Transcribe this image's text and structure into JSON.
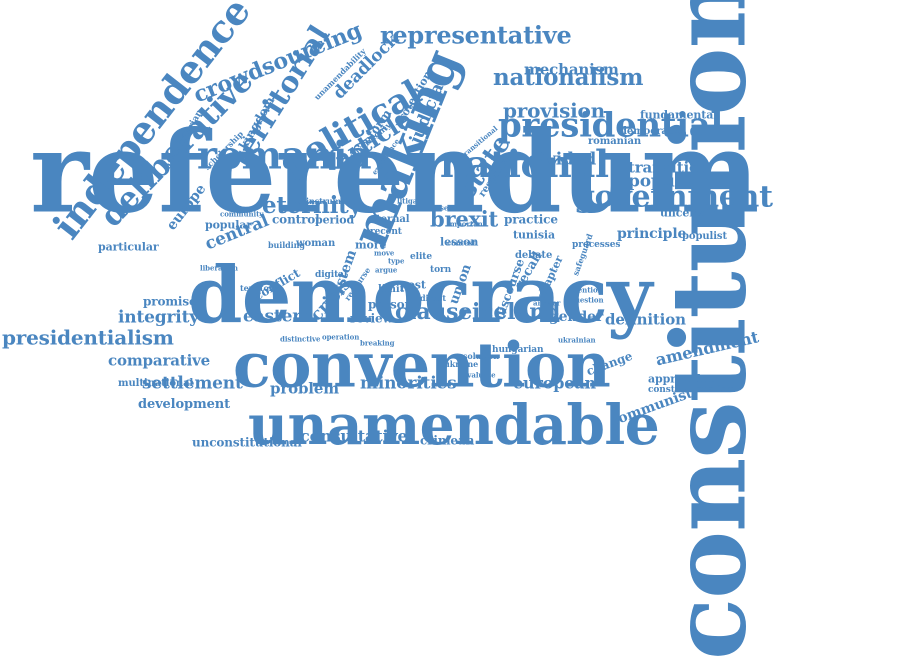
{
  "colors": {
    "word": "#4a86c0",
    "background": "#ffffff"
  },
  "words": [
    {
      "id": "referendum",
      "text": "referendum"
    },
    {
      "id": "democracy",
      "text": "democracy"
    },
    {
      "id": "constitution",
      "text": "constitution"
    },
    {
      "id": "convention",
      "text": "convention"
    },
    {
      "id": "unamendable",
      "text": "unamendable"
    },
    {
      "id": "romania",
      "text": "romania"
    },
    {
      "id": "national",
      "text": "national"
    },
    {
      "id": "presidential",
      "text": "presidential"
    },
    {
      "id": "government",
      "text": "government"
    },
    {
      "id": "making",
      "text": "making"
    },
    {
      "id": "independence",
      "text": "independence"
    },
    {
      "id": "deliberative",
      "text": "deliberative"
    },
    {
      "id": "political",
      "text": "political"
    },
    {
      "id": "representative",
      "text": "representative"
    },
    {
      "id": "territorial",
      "text": "territorial"
    },
    {
      "id": "crowdsourcing",
      "text": "crowdsourcing"
    },
    {
      "id": "eternity",
      "text": "eternity"
    },
    {
      "id": "article",
      "text": "article"
    },
    {
      "id": "state",
      "text": "state"
    },
    {
      "id": "presidentialism",
      "text": "presidentialism"
    },
    {
      "id": "nationalism",
      "text": "nationalism"
    },
    {
      "id": "provision",
      "text": "provision"
    },
    {
      "id": "brexit",
      "text": "brexit"
    },
    {
      "id": "iceland",
      "text": "iceland"
    },
    {
      "id": "clause",
      "text": "clause"
    },
    {
      "id": "european",
      "text": "european"
    },
    {
      "id": "minorities",
      "text": "minorities"
    },
    {
      "id": "settlement",
      "text": "settlement"
    },
    {
      "id": "consultative",
      "text": "consultative"
    },
    {
      "id": "integrity",
      "text": "integrity"
    },
    {
      "id": "comparative",
      "text": "comparative"
    },
    {
      "id": "amendment",
      "text": "amendment"
    },
    {
      "id": "populism",
      "text": "populism"
    },
    {
      "id": "deadlock",
      "text": "deadlock"
    },
    {
      "id": "judicial",
      "text": "judicial"
    },
    {
      "id": "mechanism",
      "text": "mechanism"
    },
    {
      "id": "divided",
      "text": "divided"
    },
    {
      "id": "transition",
      "text": "transition"
    },
    {
      "id": "principle",
      "text": "principle"
    },
    {
      "id": "central",
      "text": "central"
    },
    {
      "id": "eastern",
      "text": "eastern"
    },
    {
      "id": "gender",
      "text": "gender"
    },
    {
      "id": "definition",
      "text": "definition"
    },
    {
      "id": "problem",
      "text": "problem"
    },
    {
      "id": "development",
      "text": "development"
    },
    {
      "id": "unconstitutional",
      "text": "unconstitutional"
    },
    {
      "id": "communist",
      "text": "communist"
    },
    {
      "id": "crimean",
      "text": "crimean"
    },
    {
      "id": "crisis",
      "text": "crisis"
    },
    {
      "id": "review",
      "text": "review"
    },
    {
      "id": "europe",
      "text": "europe"
    },
    {
      "id": "kingdom",
      "text": "kingdom"
    },
    {
      "id": "reform",
      "text": "reform"
    },
    {
      "id": "protection",
      "text": "protection"
    },
    {
      "id": "fundamental",
      "text": "fundamental"
    },
    {
      "id": "democratic",
      "text": "democratic"
    },
    {
      "id": "romanian",
      "text": "romanian"
    },
    {
      "id": "uncertain",
      "text": "uncertain"
    },
    {
      "id": "populist",
      "text": "populist"
    },
    {
      "id": "lesson",
      "text": "lesson"
    },
    {
      "id": "practice",
      "text": "practice"
    },
    {
      "id": "tunisia",
      "text": "tunisia"
    },
    {
      "id": "debate",
      "text": "debate"
    },
    {
      "id": "processes",
      "text": "processes"
    },
    {
      "id": "particular",
      "text": "particular"
    },
    {
      "id": "popular",
      "text": "popular"
    },
    {
      "id": "control",
      "text": "control"
    },
    {
      "id": "period",
      "text": "period"
    },
    {
      "id": "eternal",
      "text": "eternal"
    },
    {
      "id": "recent",
      "text": "recent"
    },
    {
      "id": "more",
      "text": "more"
    },
    {
      "id": "building",
      "text": "building"
    },
    {
      "id": "woman",
      "text": "woman"
    },
    {
      "id": "promise",
      "text": "promise"
    },
    {
      "id": "conflict",
      "text": "conflict"
    },
    {
      "id": "territory",
      "text": "territory"
    },
    {
      "id": "multinational",
      "text": "multinational"
    },
    {
      "id": "approaches",
      "text": "approaches"
    },
    {
      "id": "constitutionalism",
      "text": "constitutionalism"
    },
    {
      "id": "change",
      "text": "change"
    },
    {
      "id": "system",
      "text": "system"
    },
    {
      "id": "limit",
      "text": "limit"
    },
    {
      "id": "post",
      "text": "post"
    },
    {
      "id": "person",
      "text": "person"
    },
    {
      "id": "union",
      "text": "union"
    },
    {
      "id": "discourse",
      "text": "discourse"
    },
    {
      "id": "recall",
      "text": "recall"
    },
    {
      "id": "chapter",
      "text": "chapter"
    },
    {
      "id": "authoritarian",
      "text": "authoritarian"
    },
    {
      "id": "scholarship",
      "text": "scholarship"
    },
    {
      "id": "unamendability",
      "text": "unamendability"
    },
    {
      "id": "sovereignty",
      "text": "sovereignty"
    },
    {
      "id": "instrument",
      "text": "instrument"
    },
    {
      "id": "response",
      "text": "response"
    },
    {
      "id": "litigation",
      "text": "litigation"
    },
    {
      "id": "elite",
      "text": "elite"
    },
    {
      "id": "torn",
      "text": "torn"
    },
    {
      "id": "direct",
      "text": "direct"
    },
    {
      "id": "hungarian",
      "text": "hungarian"
    },
    {
      "id": "ukraine",
      "text": "ukraine"
    },
    {
      "id": "solution",
      "text": "solution"
    },
    {
      "id": "evaluate",
      "text": "evaluate"
    },
    {
      "id": "breaking",
      "text": "breaking"
    },
    {
      "id": "operation",
      "text": "operation"
    },
    {
      "id": "distinctive",
      "text": "distinctive"
    },
    {
      "id": "community",
      "text": "community"
    },
    {
      "id": "type",
      "text": "type"
    },
    {
      "id": "digital",
      "text": "digital"
    },
    {
      "id": "recourse",
      "text": "recourse"
    },
    {
      "id": "argue",
      "text": "argue"
    },
    {
      "id": "experience",
      "text": "experience"
    },
    {
      "id": "transitional",
      "text": "transitional"
    },
    {
      "id": "safeguard",
      "text": "safeguard"
    },
    {
      "id": "attention",
      "text": "attention"
    },
    {
      "id": "question",
      "text": "question"
    },
    {
      "id": "answer",
      "text": "answer"
    },
    {
      "id": "ukrainian",
      "text": "ukrainian"
    },
    {
      "id": "liberation",
      "text": "liberation"
    },
    {
      "id": "move",
      "text": "move"
    },
    {
      "id": "context",
      "text": "context"
    },
    {
      "id": "important",
      "text": "important"
    },
    {
      "id": "sense",
      "text": "sense"
    }
  ]
}
